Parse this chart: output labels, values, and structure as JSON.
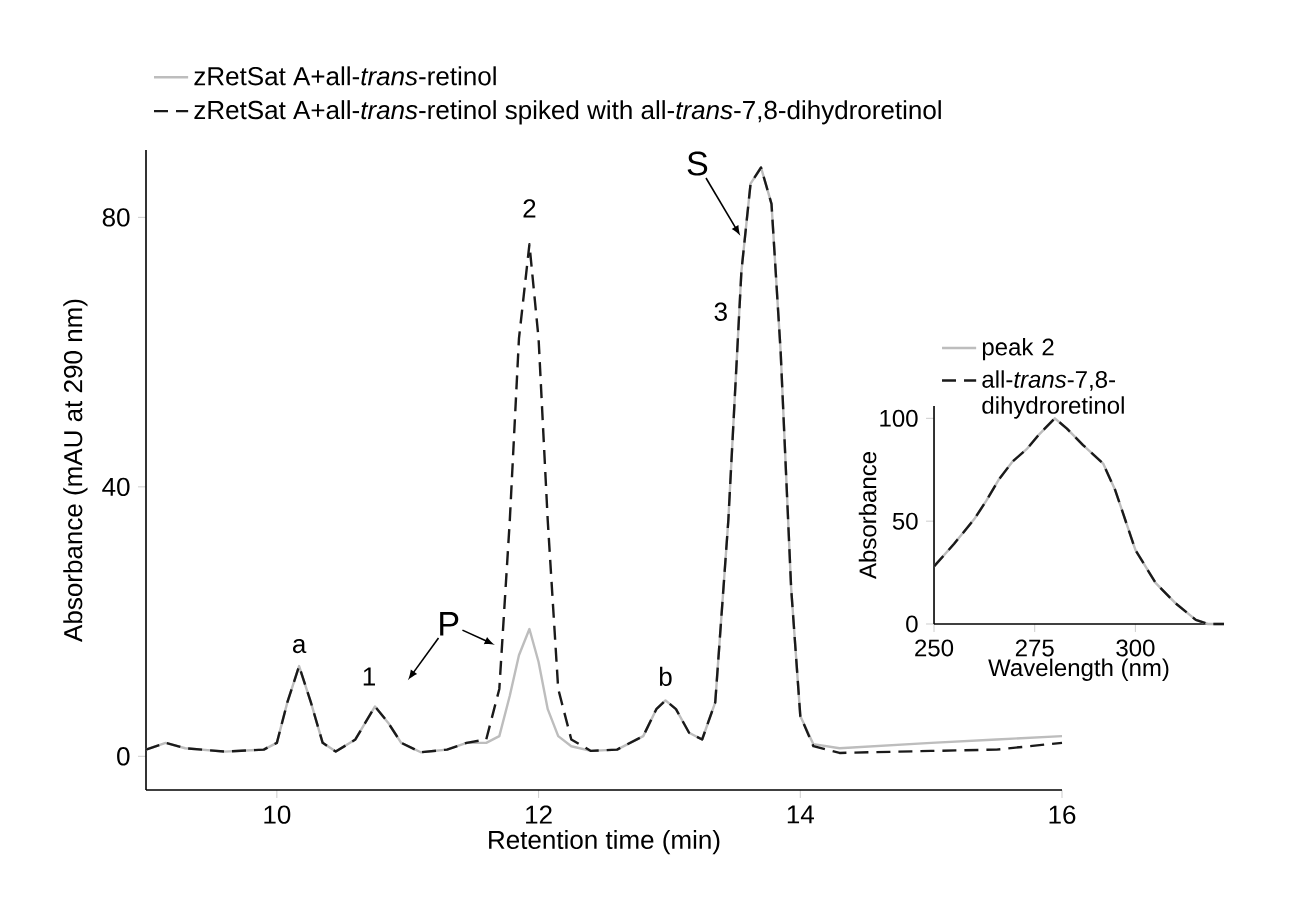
{
  "chart_data": [
    {
      "type": "line",
      "xlabel": "Retention time (min)",
      "ylabel": "Absorbance (mAU at 290 nm)",
      "legend": "top left",
      "xlim": [
        9,
        16
      ],
      "ylim": [
        -5,
        90
      ],
      "xticks": [
        10,
        12,
        14,
        16
      ],
      "yticks": [
        0,
        40,
        80
      ],
      "x": [
        9.0,
        9.15,
        9.3,
        9.6,
        9.9,
        10.0,
        10.08,
        10.17,
        10.26,
        10.35,
        10.45,
        10.6,
        10.75,
        10.85,
        10.95,
        11.1,
        11.3,
        11.45,
        11.6,
        11.7,
        11.78,
        11.85,
        11.93,
        12.0,
        12.07,
        12.15,
        12.25,
        12.4,
        12.6,
        12.8,
        12.9,
        12.97,
        13.05,
        13.15,
        13.25,
        13.35,
        13.45,
        13.55,
        13.62,
        13.7,
        13.78,
        13.85,
        13.93,
        14.0,
        14.1,
        14.3,
        15.0,
        15.5,
        16.0
      ],
      "series": [
        {
          "name": "zRetSat A+all-*trans*-retinol",
          "color": "#bdbdbd",
          "line_style": "solid",
          "values": [
            1.0,
            2.0,
            1.2,
            0.7,
            1.0,
            2.0,
            8,
            13.4,
            8,
            2,
            0.7,
            2.5,
            7.4,
            5,
            2,
            0.6,
            1.0,
            2.0,
            2.0,
            3,
            9,
            15,
            18.9,
            14,
            7,
            3,
            1.5,
            0.8,
            1.0,
            3,
            7,
            8.3,
            7,
            3.5,
            2.5,
            8,
            35,
            72,
            85,
            87.4,
            82,
            60,
            25,
            6,
            1.8,
            1.2,
            2.0,
            2.5,
            3.0
          ]
        },
        {
          "name": "zRetSat A+all-*trans*-retinol spiked with all-*trans*-7,8-dihydroretinol",
          "color": "#1a1a1a",
          "line_style": "dashed",
          "values": [
            1.0,
            2.0,
            1.2,
            0.7,
            1.0,
            2.0,
            8,
            13.4,
            8,
            2,
            0.7,
            2.5,
            7.4,
            5,
            2,
            0.6,
            1.0,
            2.0,
            2.5,
            10,
            35,
            62,
            76,
            62,
            35,
            10,
            2.5,
            0.8,
            1.0,
            3,
            7,
            8.3,
            7,
            3.5,
            2.5,
            8,
            35,
            72,
            85,
            87.4,
            82,
            60,
            25,
            6,
            1.5,
            0.5,
            0.8,
            1.0,
            2.0
          ]
        }
      ],
      "annotations": [
        {
          "text": "a",
          "x": 10.17,
          "y": 13.4
        },
        {
          "text": "1",
          "x": 10.75,
          "y": 7.4
        },
        {
          "text": "2",
          "x": 11.93,
          "y": 76
        },
        {
          "text": "S",
          "x": 13.55,
          "y": 77
        },
        {
          "text": "3",
          "x": 13.53,
          "y": 66
        },
        {
          "text": "b",
          "x": 12.97,
          "y": 8.3
        },
        {
          "text": "P",
          "x": 11.68,
          "y": 16.4
        }
      ]
    },
    {
      "type": "line",
      "xlabel": "Wavelength (nm)",
      "ylabel": "Absorbance",
      "legend": "top left",
      "xlim": [
        250,
        322
      ],
      "ylim": [
        0,
        106
      ],
      "xticks": [
        250,
        275,
        300
      ],
      "yticks": [
        0,
        50,
        100
      ],
      "x": [
        250,
        255,
        260,
        263,
        266,
        269.5,
        273,
        276,
        280,
        283,
        287,
        292,
        295,
        300,
        305,
        310,
        315,
        318,
        322
      ],
      "series": [
        {
          "name": "peak 2",
          "color": "#bdbdbd",
          "line_style": "solid",
          "values": [
            28,
            39,
            51,
            60,
            70,
            79,
            85,
            92,
            100,
            95,
            87,
            78,
            65,
            36,
            20,
            10,
            2,
            0,
            0
          ]
        },
        {
          "name": "all-*trans*-7,8-dihydroretinol",
          "color": "#1a1a1a",
          "line_style": "dashed",
          "values": [
            28,
            39,
            51,
            60,
            70,
            79,
            85,
            92,
            100,
            95,
            87,
            78,
            65,
            36,
            20,
            10,
            2,
            0,
            0
          ]
        }
      ]
    }
  ]
}
